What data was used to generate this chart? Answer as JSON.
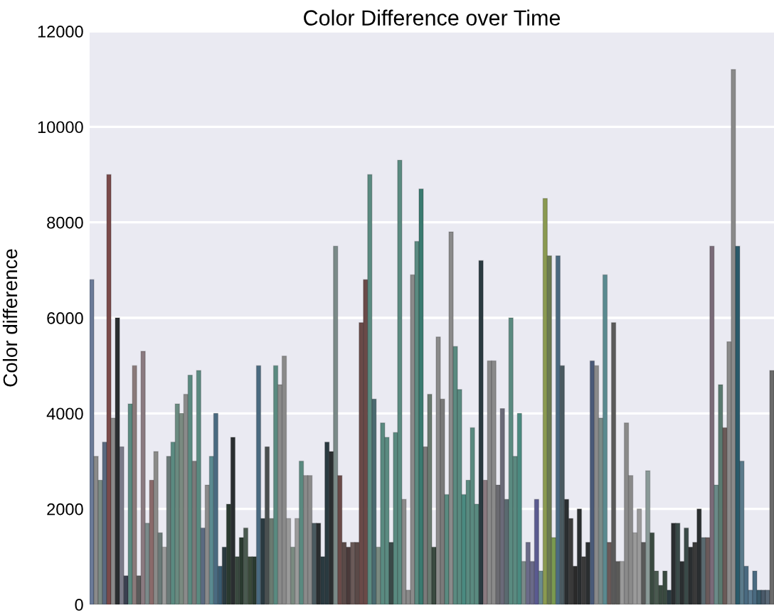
{
  "chart_data": {
    "type": "bar",
    "title": "Color Difference over Time",
    "ylabel": "Color difference",
    "categories": [
      null,
      null,
      null,
      null,
      null,
      null,
      null,
      null,
      null,
      null,
      null,
      null,
      null,
      null,
      null,
      null,
      null,
      null,
      null,
      null,
      null,
      null,
      null,
      null,
      null,
      null,
      null,
      null,
      null,
      null,
      null,
      null,
      null,
      null,
      null,
      null,
      null,
      null,
      null,
      null,
      null,
      null,
      null,
      null,
      null,
      null,
      null,
      null,
      null,
      null,
      null,
      null,
      null,
      null,
      null,
      null,
      null,
      null,
      null,
      null,
      null,
      null,
      null,
      null,
      null,
      null,
      null,
      null,
      null,
      null,
      null,
      null,
      null,
      null,
      null,
      null,
      null,
      null,
      null,
      null,
      null,
      null,
      null,
      null,
      null,
      null,
      null,
      null,
      null,
      null,
      null,
      null,
      null,
      null,
      null,
      null,
      null,
      null,
      null,
      null,
      null,
      null,
      null,
      null,
      null,
      null,
      null,
      null,
      null,
      null,
      null,
      null,
      null,
      null,
      null,
      null,
      null,
      null,
      null,
      null,
      null,
      null,
      null,
      null,
      null,
      null,
      null,
      null,
      null,
      null,
      null,
      null,
      null,
      null,
      null,
      null,
      null,
      null,
      null,
      null,
      null,
      null,
      null,
      null,
      null,
      null,
      null,
      null,
      null,
      null,
      null,
      null,
      null,
      null,
      null,
      null,
      null,
      null,
      null,
      null
    ],
    "values": [
      6800,
      3100,
      2600,
      3400,
      9000,
      3900,
      6000,
      3300,
      600,
      4200,
      5000,
      600,
      5300,
      1700,
      2600,
      3200,
      1500,
      1200,
      3100,
      3400,
      4200,
      4000,
      4400,
      4800,
      3000,
      4900,
      1600,
      2500,
      3100,
      4000,
      800,
      1200,
      2100,
      3500,
      1000,
      1400,
      1600,
      1000,
      1000,
      5000,
      1800,
      3300,
      1800,
      5000,
      4600,
      5200,
      1800,
      1200,
      1800,
      3000,
      2700,
      2700,
      1700,
      1700,
      1000,
      3400,
      3200,
      7500,
      2700,
      1300,
      1200,
      1300,
      1300,
      5900,
      6800,
      9000,
      4300,
      1200,
      3800,
      3500,
      1300,
      3600,
      9300,
      2200,
      300,
      6900,
      7600,
      8700,
      3300,
      4400,
      1200,
      5600,
      4300,
      2300,
      7800,
      5400,
      4500,
      2300,
      2600,
      3700,
      2100,
      7200,
      2600,
      5100,
      5100,
      2500,
      4100,
      2200,
      6000,
      3100,
      4000,
      900,
      1300,
      900,
      2200,
      700,
      8500,
      7300,
      1400,
      7300,
      5000,
      2200,
      1800,
      800,
      2000,
      1000,
      1300,
      5100,
      5000,
      3900,
      6900,
      1300,
      5900,
      900,
      900,
      3800,
      2700,
      1500,
      2000,
      1300,
      2800,
      1500,
      700,
      400,
      700,
      300,
      1700,
      1700,
      900,
      1600,
      1200,
      1300,
      2000,
      1400,
      1400,
      7500,
      2500,
      4600,
      3700,
      5500,
      11200,
      7500,
      3000,
      800,
      300,
      700,
      300,
      300,
      300,
      4900
    ],
    "colors": [
      "#6a7a98",
      "#8a8a8a",
      "#7a8a84",
      "#5a6a80",
      "#7a4a4a",
      "#8a8a8a",
      "#2a2e30",
      "#7a7a88",
      "#3a4050",
      "#5a8a80",
      "#8a7a7a",
      "#5a5a5a",
      "#8a7a80",
      "#7a8a8a",
      "#8a6a6a",
      "#8a8a88",
      "#6a7a78",
      "#9a9a9a",
      "#6a7a78",
      "#5a8a80",
      "#6a8a80",
      "#7a8a80",
      "#8a8a8a",
      "#5a8a80",
      "#7a7a7a",
      "#5a8a80",
      "#5a6a80",
      "#8a8a8a",
      "#5a8a90",
      "#4a6a80",
      "#3a5a70",
      "#2a3a40",
      "#2a3a30",
      "#2a2e30",
      "#3a4a40",
      "#2a3a30",
      "#4a5a50",
      "#3a4a3a",
      "#2a3a30",
      "#4a6a80",
      "#2a3a40",
      "#4a5050",
      "#6a7a70",
      "#5a8a80",
      "#8a8a8a",
      "#8a8a8a",
      "#9a9a9a",
      "#7a8a80",
      "#9a9a9a",
      "#5a8a80",
      "#8a8a8a",
      "#8a8a8a",
      "#4a5a60",
      "#2a2e30",
      "#2a3a40",
      "#2a3a40",
      "#2a2e30",
      "#7a8a88",
      "#6a4a48",
      "#5a4a48",
      "#4a3a3a",
      "#6a5a58",
      "#5a4a48",
      "#6a4a48",
      "#6a4a48",
      "#5a8a80",
      "#4a6a70",
      "#7a8a80",
      "#5a8a80",
      "#5a8a80",
      "#3a4a48",
      "#5a8a80",
      "#5a8a80",
      "#8a8a8a",
      "#8a8a8a",
      "#8a8a8a",
      "#5a8a80",
      "#3a7a70",
      "#7a7a7a",
      "#6a7a70",
      "#3a4a40",
      "#8a8a8a",
      "#7a7a7a",
      "#5a8a80",
      "#8a8a8a",
      "#5a8a80",
      "#5a8a80",
      "#4a8a80",
      "#5a8a80",
      "#5a8a80",
      "#5a8a80",
      "#2a3a40",
      "#8a7a80",
      "#8a8a8a",
      "#8a8a8a",
      "#6a6a70",
      "#6a6a78",
      "#5a6a70",
      "#5a8a80",
      "#5a8a80",
      "#4a8a80",
      "#7a8a88",
      "#6a6a88",
      "#6a6a88",
      "#5a5a90",
      "#6a8a90",
      "#8a9a50",
      "#6a7a50",
      "#7a9a50",
      "#4a6a80",
      "#4a5a60",
      "#2a2e30",
      "#3a3a3a",
      "#2a2a2a",
      "#2a2e30",
      "#3a3a3a",
      "#2a2e30",
      "#4a5a78",
      "#8a8a8a",
      "#7a8a88",
      "#5a8a90",
      "#6a5a58",
      "#5a5a5a",
      "#5a5a58",
      "#9a9a9a",
      "#8a8a8a",
      "#8a8a8a",
      "#9a9a9a",
      "#9a9a9a",
      "#5a5a5a",
      "#8a9a98",
      "#3a4a40",
      "#4a5a50",
      "#3a4a40",
      "#3a4a40",
      "#2a3a40",
      "#2a2e30",
      "#3a4a48",
      "#2a2e30",
      "#3a4a48",
      "#2a2e30",
      "#3a3a3a",
      "#2a2e30",
      "#5a6a70",
      "#6a5a5a",
      "#7a6a78",
      "#6a8a88",
      "#5a7a70",
      "#6a5a58",
      "#8a8a8a",
      "#8a8a8a",
      "#2a5a6a",
      "#5a7a8a",
      "#4a6a80",
      "#5a7a90",
      "#4a6a80",
      "#3a5a6a",
      "#4a5a6a",
      "#5a6a78",
      "#6a6a6a"
    ],
    "ylim": [
      0,
      12000
    ],
    "yticks": [
      0,
      2000,
      4000,
      6000,
      8000,
      10000,
      12000
    ],
    "grid": "y",
    "tick_labels": "y"
  }
}
